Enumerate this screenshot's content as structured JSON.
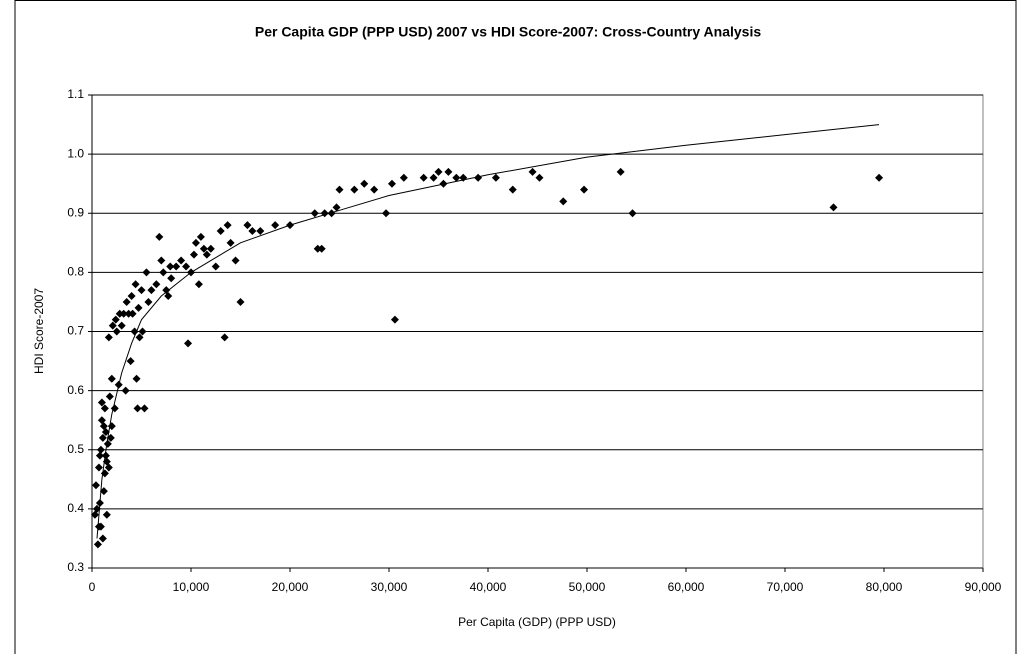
{
  "chart_data": {
    "type": "scatter",
    "title": "Per Capita GDP (PPP USD) 2007 vs HDI Score-2007: Cross-Country Analysis",
    "x_label": "Per Capita (GDP) (PPP USD)",
    "y_label": "HDI Score-2007",
    "color": "#000000",
    "grid": true,
    "xlim": [
      0,
      90000
    ],
    "ylim": [
      0.3,
      1.1
    ],
    "xticks": [
      0,
      {
        "value": 10000,
        "label": "10,000"
      },
      {
        "value": 20000,
        "label": "20,000"
      },
      {
        "value": 30000,
        "label": "30,000"
      },
      {
        "value": 40000,
        "label": "40,000"
      },
      {
        "value": 50000,
        "label": "50,000"
      },
      {
        "value": 60000,
        "label": "60,000"
      },
      {
        "value": 70000,
        "label": "70,000"
      },
      {
        "value": 80000,
        "label": "80,000"
      },
      {
        "value": 90000,
        "label": "90,000"
      }
    ],
    "yticks": [
      0.3,
      0.4,
      0.5,
      0.6,
      0.7,
      0.8,
      0.9,
      {
        "value": 1,
        "label": "1.0"
      },
      1.1
    ],
    "x": [
      300,
      400,
      500,
      600,
      700,
      700,
      800,
      800,
      900,
      900,
      1000,
      1000,
      1100,
      1100,
      1200,
      1200,
      1300,
      1300,
      1400,
      1400,
      1500,
      1500,
      1600,
      1700,
      1700,
      1800,
      1900,
      2000,
      2000,
      2100,
      2300,
      2400,
      2500,
      2700,
      2800,
      3000,
      3200,
      3400,
      3500,
      3700,
      3900,
      4000,
      4100,
      4300,
      4400,
      4500,
      4600,
      4700,
      4800,
      5000,
      5100,
      5300,
      5500,
      5700,
      6000,
      6500,
      6800,
      7000,
      7200,
      7500,
      7700,
      7900,
      8000,
      8500,
      9000,
      9500,
      9700,
      10000,
      10300,
      10500,
      10800,
      11000,
      11300,
      11600,
      12000,
      12500,
      13000,
      13400,
      13700,
      14000,
      14500,
      15000,
      15700,
      16200,
      17000,
      18500,
      20000,
      22500,
      22800,
      23200,
      23500,
      24200,
      24700,
      25000,
      26500,
      27500,
      28500,
      29700,
      30300,
      30600,
      31500,
      33500,
      34500,
      35000,
      35500,
      36000,
      36800,
      37500,
      39000,
      40800,
      42500,
      44500,
      45200,
      47600,
      49700,
      53400,
      54600,
      74900,
      79500
    ],
    "values": [
      0.39,
      0.44,
      0.4,
      0.34,
      0.37,
      0.47,
      0.49,
      0.41,
      0.5,
      0.37,
      0.55,
      0.58,
      0.35,
      0.52,
      0.43,
      0.54,
      0.46,
      0.57,
      0.49,
      0.53,
      0.48,
      0.39,
      0.51,
      0.47,
      0.69,
      0.59,
      0.52,
      0.54,
      0.62,
      0.71,
      0.57,
      0.72,
      0.7,
      0.61,
      0.73,
      0.71,
      0.73,
      0.6,
      0.75,
      0.73,
      0.65,
      0.76,
      0.73,
      0.7,
      0.78,
      0.62,
      0.57,
      0.74,
      0.69,
      0.77,
      0.7,
      0.57,
      0.8,
      0.75,
      0.77,
      0.78,
      0.86,
      0.82,
      0.8,
      0.77,
      0.76,
      0.81,
      0.79,
      0.81,
      0.82,
      0.81,
      0.68,
      0.8,
      0.83,
      0.85,
      0.78,
      0.86,
      0.84,
      0.83,
      0.84,
      0.81,
      0.87,
      0.69,
      0.88,
      0.85,
      0.82,
      0.75,
      0.88,
      0.87,
      0.87,
      0.88,
      0.88,
      0.9,
      0.84,
      0.84,
      0.9,
      0.9,
      0.91,
      0.94,
      0.94,
      0.95,
      0.94,
      0.9,
      0.95,
      0.72,
      0.96,
      0.96,
      0.96,
      0.97,
      0.95,
      0.97,
      0.96,
      0.96,
      0.96,
      0.96,
      0.94,
      0.97,
      0.96,
      0.92,
      0.94,
      0.97,
      0.9,
      0.91,
      0.96
    ],
    "trendline": {
      "x": [
        500,
        1000,
        1500,
        2000,
        3000,
        4000,
        5000,
        7000,
        10000,
        15000,
        20000,
        25000,
        30000,
        40000,
        50000,
        60000,
        70000,
        79500
      ],
      "values": [
        0.35,
        0.45,
        0.51,
        0.56,
        0.63,
        0.68,
        0.72,
        0.76,
        0.8,
        0.85,
        0.88,
        0.905,
        0.93,
        0.965,
        0.995,
        1.015,
        1.033,
        1.05
      ]
    }
  }
}
